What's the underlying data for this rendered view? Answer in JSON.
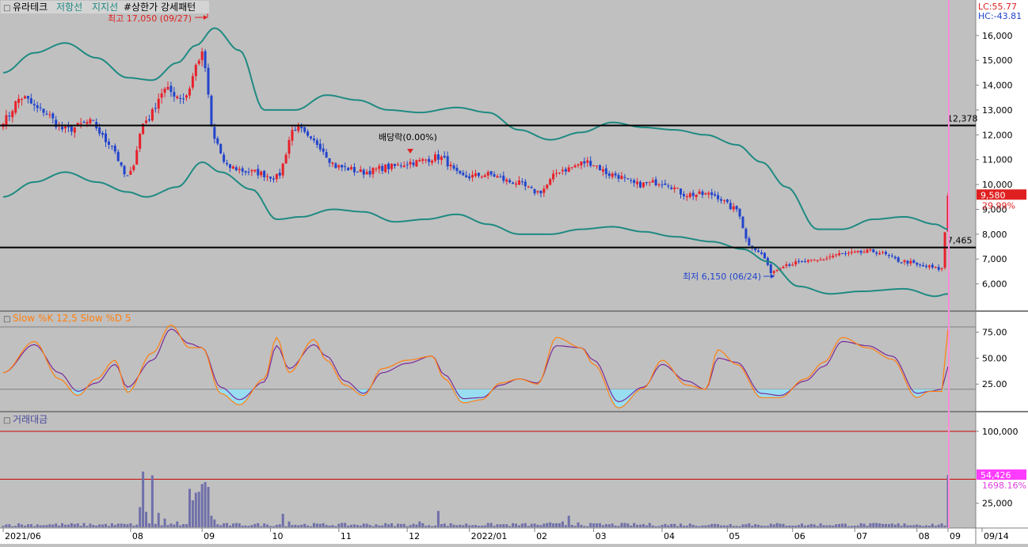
{
  "header": {
    "marker": "□",
    "stock_name": "유라테크",
    "resistance_label": "저항선",
    "support_label": "지지선",
    "pattern_tag": "#상한가 강세패턴"
  },
  "right_readouts": {
    "lc": "LC:55.77",
    "hc": "HC:-43.81"
  },
  "colors": {
    "background": "#c0c0c0",
    "axis_bg": "#ffffff",
    "up_candle": "#e8202a",
    "down_candle": "#2244cc",
    "bollinger": "#1f8a82",
    "horizontal_line": "#000000",
    "slow_k": "#ff7f0e",
    "slow_d": "#7a2a9a",
    "stoch_fill": "#99ddf0",
    "volume_bar": "#7070aa",
    "ref_line_red": "#cc0000",
    "current_marker": "#ff8fd8",
    "price_tag_bg": "#e02020",
    "volume_tag_bg": "#ff3cff"
  },
  "chart_data": [
    {
      "type": "candlestick",
      "panel": "price",
      "x_start": "2021/06",
      "ylim": [
        5000,
        17300
      ],
      "y_ticks": [
        "16,000",
        "15,000",
        "14,000",
        "13,000",
        "12,000",
        "11,000",
        "10,000",
        "9,000",
        "8,000",
        "7,000",
        "6,000"
      ],
      "y_tick_values": [
        16000,
        15000,
        14000,
        13000,
        12000,
        11000,
        10000,
        9000,
        8000,
        7000,
        6000
      ],
      "x_tick_labels": [
        "2021/06",
        "08",
        "09",
        "10",
        "11",
        "12",
        "2022/01",
        "02",
        "03",
        "04",
        "05",
        "06",
        "07",
        "08",
        "09",
        "09/14"
      ],
      "high_annotation": {
        "text": "최고 17,050 (09/27)",
        "value": 17050
      },
      "low_annotation": {
        "text": "최저 6,150 (06/24)",
        "value": 6150
      },
      "dividend_annotation": {
        "text": "배당락(0.00%)"
      },
      "horizontal_lines": [
        {
          "value": 12378,
          "label": "12,378"
        },
        {
          "value": 7465,
          "label": "7,465"
        }
      ],
      "last_price": {
        "label": "9,580",
        "value": 9580,
        "change": "29.99%"
      },
      "close_anchors": [
        [
          0,
          12600
        ],
        [
          6,
          13500
        ],
        [
          12,
          13000
        ],
        [
          20,
          12200
        ],
        [
          28,
          12500
        ],
        [
          34,
          11700
        ],
        [
          40,
          10300
        ],
        [
          46,
          12600
        ],
        [
          52,
          13800
        ],
        [
          58,
          13500
        ],
        [
          64,
          15200
        ],
        [
          68,
          11800
        ],
        [
          72,
          10700
        ],
        [
          80,
          10500
        ],
        [
          88,
          10300
        ],
        [
          94,
          12300
        ],
        [
          100,
          11700
        ],
        [
          108,
          10700
        ],
        [
          116,
          10500
        ],
        [
          124,
          10700
        ],
        [
          132,
          10900
        ],
        [
          140,
          11100
        ],
        [
          148,
          10300
        ],
        [
          156,
          10400
        ],
        [
          164,
          10100
        ],
        [
          172,
          9700
        ],
        [
          180,
          10600
        ],
        [
          188,
          10900
        ],
        [
          196,
          10400
        ],
        [
          204,
          10000
        ],
        [
          212,
          10100
        ],
        [
          220,
          9600
        ],
        [
          228,
          9600
        ],
        [
          236,
          9000
        ],
        [
          240,
          7600
        ],
        [
          244,
          7200
        ],
        [
          247,
          6500
        ],
        [
          252,
          6800
        ],
        [
          260,
          6900
        ],
        [
          270,
          7200
        ],
        [
          280,
          7300
        ],
        [
          290,
          6900
        ],
        [
          296,
          6700
        ],
        [
          302,
          6600
        ],
        [
          304,
          9580
        ]
      ],
      "bollinger_upper": [
        [
          0,
          14500
        ],
        [
          10,
          15300
        ],
        [
          20,
          15700
        ],
        [
          30,
          15100
        ],
        [
          40,
          14300
        ],
        [
          48,
          14200
        ],
        [
          56,
          14900
        ],
        [
          62,
          15600
        ],
        [
          68,
          16300
        ],
        [
          76,
          15400
        ],
        [
          84,
          13000
        ],
        [
          94,
          13000
        ],
        [
          104,
          13600
        ],
        [
          114,
          13400
        ],
        [
          124,
          13000
        ],
        [
          134,
          12900
        ],
        [
          146,
          13100
        ],
        [
          156,
          12900
        ],
        [
          166,
          12200
        ],
        [
          176,
          11800
        ],
        [
          186,
          12100
        ],
        [
          196,
          12500
        ],
        [
          206,
          12300
        ],
        [
          216,
          12200
        ],
        [
          226,
          12000
        ],
        [
          236,
          11600
        ],
        [
          244,
          10900
        ],
        [
          252,
          9900
        ],
        [
          262,
          8200
        ],
        [
          270,
          8200
        ],
        [
          280,
          8600
        ],
        [
          290,
          8700
        ],
        [
          300,
          8400
        ],
        [
          304,
          8200
        ]
      ],
      "bollinger_lower": [
        [
          0,
          9500
        ],
        [
          10,
          10100
        ],
        [
          20,
          10500
        ],
        [
          30,
          10100
        ],
        [
          40,
          9700
        ],
        [
          46,
          9500
        ],
        [
          56,
          9900
        ],
        [
          64,
          10900
        ],
        [
          70,
          10500
        ],
        [
          80,
          9800
        ],
        [
          88,
          8600
        ],
        [
          96,
          8700
        ],
        [
          106,
          9000
        ],
        [
          116,
          8900
        ],
        [
          126,
          8500
        ],
        [
          136,
          8600
        ],
        [
          146,
          8800
        ],
        [
          156,
          8400
        ],
        [
          166,
          8000
        ],
        [
          176,
          8000
        ],
        [
          186,
          8200
        ],
        [
          196,
          8300
        ],
        [
          206,
          8100
        ],
        [
          216,
          7900
        ],
        [
          228,
          7700
        ],
        [
          238,
          7400
        ],
        [
          246,
          6900
        ],
        [
          256,
          5900
        ],
        [
          266,
          5600
        ],
        [
          276,
          5700
        ],
        [
          290,
          5800
        ],
        [
          300,
          5500
        ],
        [
          304,
          5600
        ]
      ]
    },
    {
      "type": "line",
      "panel": "stochastic",
      "title": "Slow %K 12,5  Slow %D 5",
      "series": [
        {
          "name": "Slow %K 12,5",
          "key": "k"
        },
        {
          "name": "Slow %D 5",
          "key": "d"
        }
      ],
      "ylim": [
        0,
        93
      ],
      "y_ticks": [
        "75.00",
        "50.00",
        "25.00"
      ],
      "y_tick_values": [
        75,
        50,
        25
      ],
      "reference_lines": [
        20,
        80
      ],
      "k_anchors": [
        [
          0,
          36
        ],
        [
          10,
          66
        ],
        [
          18,
          30
        ],
        [
          24,
          14
        ],
        [
          30,
          30
        ],
        [
          36,
          48
        ],
        [
          40,
          17
        ],
        [
          48,
          55
        ],
        [
          54,
          82
        ],
        [
          60,
          60
        ],
        [
          64,
          60
        ],
        [
          70,
          16
        ],
        [
          76,
          5
        ],
        [
          84,
          30
        ],
        [
          88,
          70
        ],
        [
          92,
          36
        ],
        [
          100,
          68
        ],
        [
          104,
          48
        ],
        [
          110,
          24
        ],
        [
          116,
          14
        ],
        [
          122,
          40
        ],
        [
          130,
          48
        ],
        [
          138,
          52
        ],
        [
          142,
          30
        ],
        [
          148,
          7
        ],
        [
          154,
          10
        ],
        [
          160,
          26
        ],
        [
          166,
          30
        ],
        [
          172,
          25
        ],
        [
          178,
          70
        ],
        [
          186,
          60
        ],
        [
          190,
          44
        ],
        [
          198,
          2
        ],
        [
          206,
          21
        ],
        [
          212,
          48
        ],
        [
          220,
          24
        ],
        [
          226,
          20
        ],
        [
          230,
          58
        ],
        [
          236,
          44
        ],
        [
          244,
          12
        ],
        [
          250,
          12
        ],
        [
          258,
          30
        ],
        [
          264,
          46
        ],
        [
          270,
          70
        ],
        [
          278,
          60
        ],
        [
          286,
          49
        ],
        [
          294,
          12
        ],
        [
          298,
          18
        ],
        [
          302,
          18
        ],
        [
          304,
          78
        ]
      ],
      "d_anchors": [
        [
          0,
          36
        ],
        [
          10,
          63
        ],
        [
          18,
          36
        ],
        [
          24,
          18
        ],
        [
          30,
          26
        ],
        [
          36,
          44
        ],
        [
          40,
          22
        ],
        [
          48,
          48
        ],
        [
          54,
          78
        ],
        [
          60,
          64
        ],
        [
          64,
          60
        ],
        [
          70,
          22
        ],
        [
          76,
          10
        ],
        [
          84,
          27
        ],
        [
          88,
          62
        ],
        [
          92,
          40
        ],
        [
          100,
          63
        ],
        [
          104,
          52
        ],
        [
          110,
          28
        ],
        [
          116,
          16
        ],
        [
          122,
          36
        ],
        [
          130,
          45
        ],
        [
          138,
          52
        ],
        [
          142,
          34
        ],
        [
          148,
          11
        ],
        [
          154,
          12
        ],
        [
          160,
          24
        ],
        [
          166,
          30
        ],
        [
          172,
          26
        ],
        [
          178,
          62
        ],
        [
          186,
          60
        ],
        [
          190,
          48
        ],
        [
          198,
          8
        ],
        [
          206,
          22
        ],
        [
          212,
          44
        ],
        [
          220,
          28
        ],
        [
          226,
          20
        ],
        [
          230,
          50
        ],
        [
          236,
          46
        ],
        [
          244,
          16
        ],
        [
          250,
          14
        ],
        [
          258,
          28
        ],
        [
          264,
          42
        ],
        [
          270,
          66
        ],
        [
          278,
          62
        ],
        [
          286,
          52
        ],
        [
          294,
          16
        ],
        [
          298,
          18
        ],
        [
          302,
          20
        ],
        [
          304,
          42
        ]
      ]
    },
    {
      "type": "bar",
      "panel": "volume",
      "title": "거래대금",
      "ylim": [
        0,
        118000
      ],
      "y_ticks": [
        "100,000",
        "25,000"
      ],
      "y_tick_values": [
        100000,
        25000
      ],
      "reference_lines": [
        100000,
        50000
      ],
      "last_value": {
        "label": "54,426",
        "value": 54426,
        "change": "1698.16%"
      },
      "spikes": [
        [
          44,
          21000
        ],
        [
          45,
          58000
        ],
        [
          46,
          16000
        ],
        [
          48,
          54000
        ],
        [
          50,
          15000
        ],
        [
          52,
          9000
        ],
        [
          56,
          6000
        ],
        [
          60,
          40000
        ],
        [
          61,
          28000
        ],
        [
          62,
          36000
        ],
        [
          63,
          37000
        ],
        [
          64,
          45000
        ],
        [
          65,
          47000
        ],
        [
          66,
          42000
        ],
        [
          67,
          12000
        ],
        [
          68,
          8000
        ],
        [
          90,
          14000
        ],
        [
          92,
          6000
        ],
        [
          134,
          6000
        ],
        [
          140,
          17000
        ],
        [
          176,
          5000
        ],
        [
          180,
          6000
        ],
        [
          182,
          12000
        ],
        [
          185,
          5000
        ],
        [
          240,
          4000
        ],
        [
          290,
          4000
        ],
        [
          304,
          54426
        ]
      ]
    }
  ]
}
